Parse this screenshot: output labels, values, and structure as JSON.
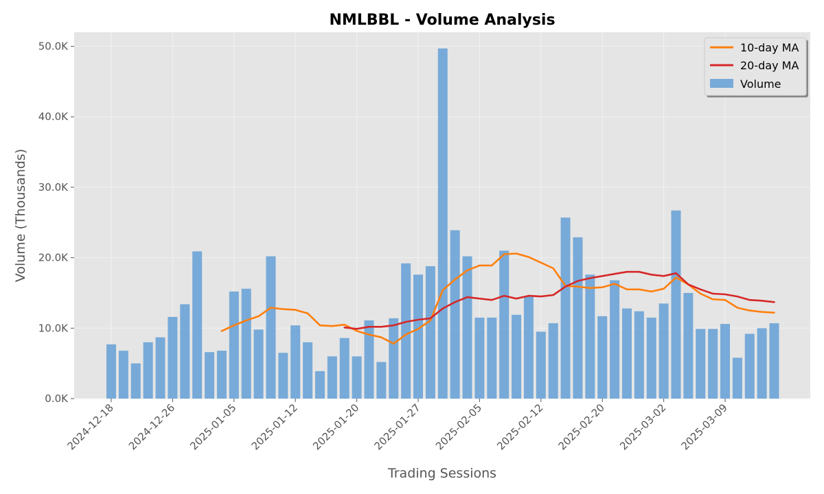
{
  "chart_data": {
    "type": "bar",
    "title": "NMLBBL - Volume Analysis",
    "xlabel": "Trading Sessions",
    "ylabel": "Volume (Thousands)",
    "ylim": [
      0,
      52000
    ],
    "y_ticks": [
      0,
      10000,
      20000,
      30000,
      40000,
      50000
    ],
    "y_tick_labels": [
      "0.0K",
      "10.0K",
      "20.0K",
      "30.0K",
      "40.0K",
      "50.0K"
    ],
    "x_tick_labels": [
      "2024-12-18",
      "2024-12-26",
      "2025-01-05",
      "2025-01-12",
      "2025-01-20",
      "2025-01-27",
      "2025-02-05",
      "2025-02-12",
      "2025-02-20",
      "2025-03-02",
      "2025-03-09"
    ],
    "x_tick_indices": [
      0,
      5,
      10,
      15,
      20,
      25,
      30,
      35,
      40,
      45,
      50
    ],
    "grid": true,
    "legend_position": "top-right",
    "colors": {
      "bars": "#5b9bd5",
      "ma10": "#ff7f0e",
      "ma20": "#d62728",
      "plot_background": "#e5e5e5",
      "grid": "#f2f2f2"
    },
    "volume": [
      7700,
      6800,
      5000,
      8000,
      8700,
      11600,
      13400,
      20900,
      6600,
      6800,
      15200,
      15600,
      9800,
      20200,
      6500,
      10400,
      8000,
      3900,
      6000,
      8600,
      6000,
      11100,
      5200,
      11400,
      19200,
      17600,
      18800,
      49700,
      23900,
      20200,
      11500,
      11500,
      21000,
      11900,
      14500,
      9500,
      10700,
      25700,
      22900,
      17600,
      11700,
      16800,
      12800,
      12400,
      11500,
      13500,
      26700,
      15000,
      9900,
      9900,
      10600,
      5800,
      9200,
      10000,
      10700
    ],
    "series": [
      {
        "name": "10-day MA",
        "start_index": 9,
        "values": [
          9600,
          10400,
          11100,
          11700,
          12900,
          12700,
          12600,
          12100,
          10400,
          10300,
          10500,
          9600,
          9100,
          8700,
          7800,
          9100,
          9900,
          11100,
          15400,
          16900,
          18200,
          18900,
          18900,
          20500,
          20600,
          20100,
          19300,
          18500,
          16000,
          15900,
          15700,
          15800,
          16300,
          15500,
          15500,
          15200,
          15600,
          17200,
          16200,
          14900,
          14100,
          14000,
          12900,
          12500,
          12300,
          12200
        ]
      },
      {
        "name": "20-day MA",
        "start_index": 19,
        "values": [
          10100,
          9900,
          10200,
          10200,
          10400,
          10900,
          11200,
          11400,
          12800,
          13700,
          14400,
          14200,
          14000,
          14600,
          14200,
          14600,
          14500,
          14700,
          15900,
          16700,
          17100,
          17400,
          17700,
          18000,
          18000,
          17600,
          17400,
          17800,
          16200,
          15500,
          14900,
          14800,
          14500,
          14000,
          13900,
          13700
        ]
      },
      {
        "name": "Volume"
      }
    ]
  }
}
